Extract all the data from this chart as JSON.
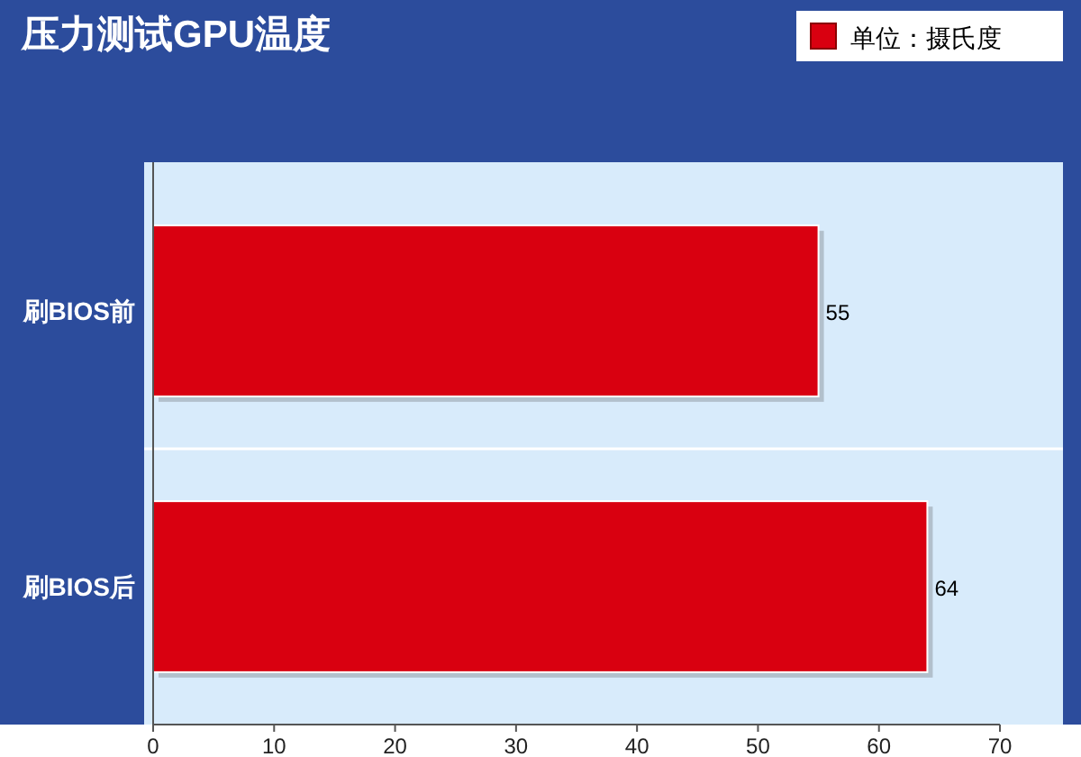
{
  "chart_data": {
    "type": "bar",
    "orientation": "horizontal",
    "title": "压力测试GPU温度",
    "categories": [
      "刷BIOS前",
      "刷BIOS后"
    ],
    "series": [
      {
        "name": "单位：摄氏度",
        "color": "#d90010",
        "values": [
          55,
          64
        ]
      }
    ],
    "xlim": [
      0,
      70
    ],
    "xticks": [
      0,
      10,
      20,
      30,
      40,
      50,
      60,
      70
    ],
    "data_labels": true,
    "legend": "top right"
  }
}
